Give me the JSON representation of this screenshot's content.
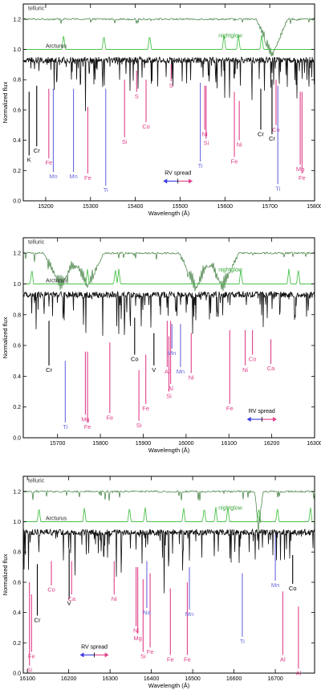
{
  "chart_data": [
    {
      "type": "line",
      "xlabel": "Wavelength (Å)",
      "ylabel": "Normalized flux",
      "xlim": [
        15150,
        15800
      ],
      "ylim": [
        0.0,
        1.3
      ],
      "xticks": [
        "15200",
        "15300",
        "15400",
        "15500",
        "15600",
        "15700",
        "15800"
      ],
      "yticks": [
        "0.0",
        "0.2",
        "0.4",
        "0.6",
        "0.8",
        "1.0",
        "1.2"
      ],
      "series_labels": {
        "telluric": "telluric",
        "nightglow": "nightglow",
        "arcturus": "Arcturus"
      },
      "telluric_bands": [
        {
          "center": 15705,
          "width": 35,
          "depth": 0.28
        }
      ],
      "nightglow_peaks": [
        15240,
        15330,
        15432,
        15598,
        15630,
        15682
      ],
      "rv_spread": {
        "label": "RV spread",
        "x": [
          15462,
          15528
        ],
        "y": 0.13
      },
      "lines": [
        {
          "label": "K",
          "x": 15163,
          "top": 0.72,
          "bottom": 0.3,
          "color": "#000000"
        },
        {
          "label": "Cr",
          "x": 15180,
          "top": 0.76,
          "bottom": 0.36,
          "color": "#000000"
        },
        {
          "label": "Fe",
          "x": 15207,
          "top": 0.74,
          "bottom": 0.28,
          "color": "#e0408a"
        },
        {
          "label": "Mn",
          "x": 15217,
          "top": 0.74,
          "bottom": 0.19,
          "color": "#6a6ae0"
        },
        {
          "label": "Mn",
          "x": 15262,
          "top": 0.74,
          "bottom": 0.19,
          "color": "#6a6ae0"
        },
        {
          "label": "Fe",
          "x": 15294,
          "top": 0.62,
          "bottom": 0.18,
          "color": "#e0408a"
        },
        {
          "label": "Ti",
          "x": 15334,
          "top": 0.74,
          "bottom": 0.1,
          "color": "#6a6ae0"
        },
        {
          "label": "Si",
          "x": 15376,
          "top": 0.8,
          "bottom": 0.42,
          "color": "#e0408a"
        },
        {
          "label": "S",
          "x": 15403,
          "top": 0.86,
          "bottom": 0.72,
          "color": "#e0408a"
        },
        {
          "label": "Co",
          "x": 15424,
          "top": 0.8,
          "bottom": 0.52,
          "color": "#e0408a"
        },
        {
          "label": "S",
          "x": 15480,
          "top": 0.9,
          "bottom": 0.79,
          "color": "#e0408a"
        },
        {
          "label": "Ti",
          "x": 15545,
          "top": 0.78,
          "bottom": 0.26,
          "color": "#6a6ae0"
        },
        {
          "label": "Ni",
          "x": 15555,
          "top": 0.76,
          "bottom": 0.47,
          "color": "#e0408a"
        },
        {
          "label": "Si",
          "x": 15558,
          "top": 0.76,
          "bottom": 0.41,
          "color": "#e0408a"
        },
        {
          "label": "Fe",
          "x": 15621,
          "top": 0.72,
          "bottom": 0.29,
          "color": "#e0408a"
        },
        {
          "label": "Ni",
          "x": 15632,
          "top": 0.66,
          "bottom": 0.4,
          "color": "#e0408a"
        },
        {
          "label": "Cr",
          "x": 15680,
          "top": 0.74,
          "bottom": 0.47,
          "color": "#000000"
        },
        {
          "label": "Co",
          "x": 15714,
          "top": 0.8,
          "bottom": 0.5,
          "color": "#e0408a"
        },
        {
          "label": "Cr",
          "x": 15705,
          "top": 0.8,
          "bottom": 0.44,
          "color": "#000000"
        },
        {
          "label": "Ti",
          "x": 15718,
          "top": 0.76,
          "bottom": 0.11,
          "color": "#6a6ae0"
        },
        {
          "label": "Mg",
          "x": 15768,
          "top": 0.72,
          "bottom": 0.24,
          "color": "#e0408a"
        },
        {
          "label": "Fe",
          "x": 15772,
          "top": 0.72,
          "bottom": 0.18,
          "color": "#e0408a"
        }
      ]
    },
    {
      "type": "line",
      "xlabel": "Wavelength (Å)",
      "ylabel": "Normalized flux",
      "xlim": [
        15620,
        16300
      ],
      "ylim": [
        0.0,
        1.3
      ],
      "xticks": [
        "15700",
        "15800",
        "15900",
        "16000",
        "16100",
        "16200",
        "16300"
      ],
      "yticks": [
        "0.0",
        "0.2",
        "0.4",
        "0.6",
        "0.8",
        "1.0",
        "1.2"
      ],
      "series_labels": {
        "telluric": "telluric",
        "nightglow": "nightglow",
        "arcturus": "Arcturus"
      },
      "telluric_bands": [
        {
          "center": 15708,
          "width": 40,
          "depth": 0.25
        },
        {
          "center": 15770,
          "width": 38,
          "depth": 0.25
        },
        {
          "center": 16023,
          "width": 38,
          "depth": 0.27
        },
        {
          "center": 16085,
          "width": 38,
          "depth": 0.26
        }
      ],
      "nightglow_peaks": [
        15640,
        15770,
        15835,
        15843,
        16128,
        16240,
        16262
      ],
      "rv_spread": {
        "label": "RV spread",
        "x": [
          16142,
          16212
        ],
        "y": 0.12
      },
      "lines": [
        {
          "label": "Cr",
          "x": 15680,
          "top": 0.76,
          "bottom": 0.47,
          "color": "#000000"
        },
        {
          "label": "Ti",
          "x": 15718,
          "top": 0.5,
          "bottom": 0.1,
          "color": "#6a6ae0"
        },
        {
          "label": "Mg",
          "x": 15765,
          "top": 0.56,
          "bottom": 0.15,
          "color": "#e0408a"
        },
        {
          "label": "Fe",
          "x": 15770,
          "top": 0.56,
          "bottom": 0.1,
          "color": "#e0408a"
        },
        {
          "label": "Fe",
          "x": 15822,
          "top": 0.62,
          "bottom": 0.16,
          "color": "#e0408a"
        },
        {
          "label": "Co",
          "x": 15880,
          "top": 0.78,
          "bottom": 0.54,
          "color": "#000000"
        },
        {
          "label": "Si",
          "x": 15890,
          "top": 0.44,
          "bottom": 0.11,
          "color": "#e0408a"
        },
        {
          "label": "Fe",
          "x": 15906,
          "top": 0.54,
          "bottom": 0.22,
          "color": "#e0408a"
        },
        {
          "label": "V",
          "x": 15925,
          "top": 0.68,
          "bottom": 0.47,
          "color": "#000000"
        },
        {
          "label": "Al",
          "x": 15956,
          "top": 0.76,
          "bottom": 0.46,
          "color": "#e0408a"
        },
        {
          "label": "Al",
          "x": 15964,
          "top": 0.76,
          "bottom": 0.35,
          "color": "#e0408a"
        },
        {
          "label": "Si",
          "x": 15960,
          "top": 0.66,
          "bottom": 0.3,
          "color": "#e0408a"
        },
        {
          "label": "Mn",
          "x": 15967,
          "top": 0.74,
          "bottom": 0.58,
          "color": "#6a6ae0"
        },
        {
          "label": "Mn",
          "x": 15987,
          "top": 0.74,
          "bottom": 0.46,
          "color": "#6a6ae0"
        },
        {
          "label": "Ni",
          "x": 16012,
          "top": 0.68,
          "bottom": 0.42,
          "color": "#e0408a"
        },
        {
          "label": "Fe",
          "x": 16102,
          "top": 0.7,
          "bottom": 0.22,
          "color": "#e0408a"
        },
        {
          "label": "Ni",
          "x": 16138,
          "top": 0.7,
          "bottom": 0.47,
          "color": "#e0408a"
        },
        {
          "label": "Co",
          "x": 16155,
          "top": 0.7,
          "bottom": 0.54,
          "color": "#e0408a"
        },
        {
          "label": "Ca",
          "x": 16198,
          "top": 0.64,
          "bottom": 0.48,
          "color": "#e0408a"
        }
      ]
    },
    {
      "type": "line",
      "xlabel": "Wavelength (Å)",
      "ylabel": "Normalized flux",
      "xlim": [
        16090,
        16795
      ],
      "ylim": [
        0.0,
        1.3
      ],
      "xticks": [
        "16100",
        "16200",
        "16300",
        "16400",
        "16500",
        "16600",
        "16700"
      ],
      "yticks": [
        "0.0",
        "0.2",
        "0.4",
        "0.6",
        "0.8",
        "1.0",
        "1.2"
      ],
      "series_labels": {
        "telluric": "telluric",
        "nightglow": "nightglow",
        "arcturus": "Arcturus"
      },
      "telluric_bands": [
        {
          "center": 16660,
          "width": 10,
          "depth": 0.3
        }
      ],
      "nightglow_peaks": [
        16128,
        16238,
        16347,
        16385,
        16478,
        16528,
        16556,
        16585,
        16660,
        16705,
        16785
      ],
      "rv_spread": {
        "label": "RV spread",
        "x": [
          16227,
          16297
        ],
        "y": 0.12
      },
      "lines": [
        {
          "label": "Si",
          "x": 16105,
          "top": 0.6,
          "bottom": 0.05,
          "color": "#e0408a"
        },
        {
          "label": "Fe",
          "x": 16110,
          "top": 0.52,
          "bottom": 0.14,
          "color": "#e0408a"
        },
        {
          "label": "Cr",
          "x": 16124,
          "top": 0.72,
          "bottom": 0.38,
          "color": "#000000"
        },
        {
          "label": "Co",
          "x": 16158,
          "top": 0.74,
          "bottom": 0.58,
          "color": "#e0408a"
        },
        {
          "label": "V",
          "x": 16201,
          "top": 0.82,
          "bottom": 0.49,
          "color": "#000000"
        },
        {
          "label": "Ca",
          "x": 16207,
          "top": 0.74,
          "bottom": 0.52,
          "color": "#e0408a"
        },
        {
          "label": "Ni",
          "x": 16310,
          "top": 0.74,
          "bottom": 0.52,
          "color": "#e0408a"
        },
        {
          "label": "Ni",
          "x": 16363,
          "top": 0.7,
          "bottom": 0.31,
          "color": "#e0408a"
        },
        {
          "label": "Mg",
          "x": 16367,
          "top": 0.7,
          "bottom": 0.26,
          "color": "#e0408a"
        },
        {
          "label": "Si",
          "x": 16380,
          "top": 0.62,
          "bottom": 0.14,
          "color": "#e0408a"
        },
        {
          "label": "Fe",
          "x": 16397,
          "top": 0.66,
          "bottom": 0.17,
          "color": "#e0408a"
        },
        {
          "label": "Na",
          "x": 16389,
          "top": 0.74,
          "bottom": 0.43,
          "color": "#6a6ae0"
        },
        {
          "label": "Fe",
          "x": 16446,
          "top": 0.56,
          "bottom": 0.12,
          "color": "#e0408a"
        },
        {
          "label": "Fe",
          "x": 16487,
          "top": 0.6,
          "bottom": 0.12,
          "color": "#e0408a"
        },
        {
          "label": "Mn",
          "x": 16492,
          "top": 0.7,
          "bottom": 0.42,
          "color": "#6a6ae0"
        },
        {
          "label": "Ti",
          "x": 16620,
          "top": 0.66,
          "bottom": 0.24,
          "color": "#6a6ae0"
        },
        {
          "label": "Mn",
          "x": 16700,
          "top": 0.92,
          "bottom": 0.61,
          "color": "#6a6ae0"
        },
        {
          "label": "Al",
          "x": 16718,
          "top": 0.54,
          "bottom": 0.12,
          "color": "#e0408a"
        },
        {
          "label": "Co",
          "x": 16742,
          "top": 0.78,
          "bottom": 0.59,
          "color": "#000000"
        },
        {
          "label": "Al",
          "x": 16756,
          "top": 0.44,
          "bottom": 0.03,
          "color": "#e0408a"
        }
      ]
    }
  ]
}
